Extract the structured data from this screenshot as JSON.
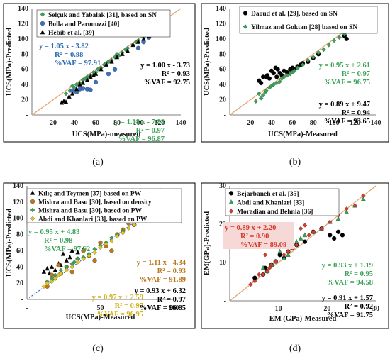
{
  "charts": [
    {
      "id": "a",
      "caption": "(a)",
      "xlabel": "UCS(MPa)-measured",
      "ylabel": "UCS(MPa)-Predicted",
      "xlim": [
        0,
        140
      ],
      "ylim": [
        0,
        140
      ],
      "xticks": [
        "-",
        "20",
        "40",
        "60",
        "80",
        "100",
        "120",
        "140"
      ],
      "yticks": [
        "-",
        "20",
        "40",
        "60",
        "80",
        "100",
        "120",
        "140"
      ],
      "legend": [
        "Selçuk and Yabalak [31], based on SN",
        "Bolla and Paronuzzi [40]",
        "Hebib et al. [39]"
      ],
      "annotations": [
        {
          "lines": [
            "y = 1.05 x -  3.82",
            "R² = 0.98",
            "%VAF = 97.91"
          ],
          "color": "#2e6db4"
        },
        {
          "lines": [
            "y = 1.00 x -  3.73",
            "R² = 0.93",
            "%VAF = 92.75"
          ],
          "color": "#000000"
        },
        {
          "lines": [
            "y = 1.08 x -  7.88",
            "R² = 0.97",
            "%VAF = 96.87"
          ],
          "color": "#3aa357"
        }
      ]
    },
    {
      "id": "b",
      "caption": "(b)",
      "xlabel": "UCS(MPa)-Measured",
      "ylabel": "UCS(MPa)-Predicted",
      "xlim": [
        0,
        140
      ],
      "ylim": [
        0,
        140
      ],
      "xticks": [
        "-",
        "20",
        "40",
        "60",
        "80",
        "100",
        "120",
        "140"
      ],
      "yticks": [
        "-",
        "20",
        "40",
        "60",
        "80",
        "100",
        "120",
        "140"
      ],
      "legend": [
        "Daoud et al. [29], based on SN",
        "Yilmaz and Goktan [28] based on SN"
      ],
      "annotations": [
        {
          "lines": [
            "y = 0.95 x +  2.61",
            "R² = 0.97",
            "%VAF = 96.75"
          ],
          "color": "#3aa357"
        },
        {
          "lines": [
            "y = 0.89 x +  9.47",
            "R² = 0.94",
            "%VAF = 93.65"
          ],
          "color": "#000000"
        }
      ]
    },
    {
      "id": "c",
      "caption": "(c)",
      "xlabel": "UCS(MPa)-Measured",
      "ylabel": "UCS(MPa)-Predicted",
      "xlim": [
        0,
        130
      ],
      "ylim": [
        0,
        140
      ],
      "xticks": [
        "-",
        "50",
        "100"
      ],
      "yticks": [
        "-",
        "20",
        "40",
        "60",
        "80",
        "100",
        "120",
        "140"
      ],
      "legend": [
        "Kılıç and Teymen [37] based on PW",
        "Mishra and Basu [30], based on density",
        "Mishra and Basu [30], based on PW",
        "Abdi and Khanlari [33], based on PW"
      ],
      "annotations": [
        {
          "lines": [
            "y = 0.95 x +  4.83",
            "R² = 0.98",
            "%VAF = 97.62"
          ],
          "color": "#3aa357"
        },
        {
          "lines": [
            "y = 1.11 x -  4.34",
            "R² = 0.93",
            "%VAF = 91.89"
          ],
          "color": "#b9781e"
        },
        {
          "lines": [
            "y = 0.97 x +  2.59",
            "R² = 0.97",
            "%VAF = 96.95"
          ],
          "color": "#d4b21a"
        },
        {
          "lines": [
            "y = 0.93 x +  6.32",
            "R² = 0.97",
            "%VAF = 96.85"
          ],
          "color": "#000000"
        }
      ]
    },
    {
      "id": "d",
      "caption": "(d)",
      "xlabel": "EM (GPa)-Measured",
      "ylabel": "EM(GPa)-Predicted",
      "xlim": [
        0,
        35
      ],
      "ylim": [
        0,
        35
      ],
      "xticks": [
        "-",
        "10",
        "20",
        "30"
      ],
      "yticks": [
        "-",
        "10",
        "20",
        "30"
      ],
      "legend": [
        "Bejarbaneh et al. [35]",
        "Abdi and Khanlari [33]",
        "Moradian and Behnia [36]"
      ],
      "annotations": [
        {
          "lines": [
            "y = 0.89 x +  2.20",
            "R² = 0.90",
            "%VAF = 89.09"
          ],
          "color": "#d33b2c"
        },
        {
          "lines": [
            "y = 0.93 x +  1.19",
            "R² = 0.95",
            "%VAF = 94.58"
          ],
          "color": "#3aa357"
        },
        {
          "lines": [
            "y = 0.91 x +  1.57",
            "R² = 0.92",
            "%VAF = 91.75"
          ],
          "color": "#000000"
        }
      ]
    }
  ],
  "chart_data": [
    {
      "type": "scatter",
      "xlim": [
        0,
        140
      ],
      "ylim": [
        0,
        140
      ],
      "reference_line": "y = x",
      "series": [
        {
          "name": "Selçuk and Yabalak [31], based on SN",
          "color": "#3aa357",
          "marker": "diamond",
          "x": [
            32,
            36,
            38,
            40,
            42,
            45,
            48,
            50,
            52,
            55,
            58,
            60,
            62,
            65,
            68,
            70,
            72,
            75,
            78,
            80,
            82,
            85,
            88,
            90,
            95,
            98,
            100,
            105,
            110,
            115,
            118
          ],
          "y": [
            28,
            32,
            38,
            36,
            40,
            42,
            46,
            48,
            50,
            52,
            56,
            56,
            60,
            62,
            66,
            68,
            70,
            72,
            76,
            80,
            78,
            82,
            86,
            88,
            92,
            96,
            98,
            102,
            108,
            112,
            116
          ]
        },
        {
          "name": "Bolla and Paronuzzi [40]",
          "color": "#3a6fc4",
          "marker": "circle",
          "x": [
            38,
            42,
            45,
            48,
            52,
            55,
            60,
            72,
            78,
            100,
            105,
            110
          ],
          "y": [
            32,
            30,
            34,
            35,
            34,
            33,
            43,
            54,
            60,
            88,
            96,
            102
          ]
        },
        {
          "name": "Hebib et al. [39]",
          "color": "#000000",
          "marker": "triangle",
          "x": [
            28,
            30,
            32,
            35,
            38,
            42,
            45,
            48,
            52,
            55,
            58,
            60,
            65,
            70,
            75,
            80,
            85,
            90,
            95,
            100,
            105,
            110,
            115,
            118
          ],
          "y": [
            16,
            18,
            17,
            24,
            28,
            34,
            40,
            42,
            46,
            50,
            52,
            54,
            60,
            66,
            70,
            76,
            80,
            84,
            92,
            96,
            100,
            104,
            112,
            116
          ]
        }
      ]
    },
    {
      "type": "scatter",
      "xlim": [
        0,
        140
      ],
      "ylim": [
        0,
        140
      ],
      "reference_line": "y = x",
      "series": [
        {
          "name": "Daoud et al. [29], based on SN",
          "color": "#000000",
          "marker": "circle",
          "x": [
            28,
            30,
            32,
            35,
            36,
            38,
            40,
            42,
            44,
            45,
            46,
            48,
            50,
            52,
            55,
            58,
            60,
            62,
            65,
            68,
            70,
            75,
            80,
            85,
            110,
            112
          ],
          "y": [
            45,
            42,
            50,
            50,
            52,
            48,
            58,
            55,
            62,
            50,
            60,
            55,
            52,
            58,
            56,
            60,
            62,
            60,
            64,
            66,
            68,
            70,
            75,
            80,
            104,
            100
          ]
        },
        {
          "name": "Yilmaz and Goktan [28] based on SN",
          "color": "#3aa357",
          "marker": "diamond",
          "x": [
            25,
            28,
            30,
            32,
            34,
            35,
            38,
            40,
            42,
            45,
            48,
            50,
            52,
            55,
            58,
            60,
            62,
            65,
            70,
            75,
            80,
            85,
            90,
            95,
            100,
            105,
            110,
            115,
            118,
            120
          ],
          "y": [
            18,
            28,
            22,
            26,
            30,
            32,
            36,
            38,
            40,
            42,
            44,
            48,
            50,
            52,
            54,
            56,
            58,
            62,
            66,
            72,
            76,
            82,
            86,
            92,
            98,
            102,
            106,
            112,
            116,
            118
          ]
        }
      ]
    },
    {
      "type": "scatter",
      "xlim": [
        0,
        130
      ],
      "ylim": [
        0,
        140
      ],
      "reference_line": "y = x",
      "series": [
        {
          "name": "Kılıç and Teymen [37] based on PW",
          "color": "#000000",
          "marker": "triangle",
          "x": [
            15,
            18,
            20,
            22,
            25,
            28,
            30,
            32,
            35,
            38,
            40,
            45,
            50
          ],
          "y": [
            34,
            38,
            32,
            40,
            36,
            44,
            42,
            56,
            48,
            52,
            60,
            58,
            62
          ]
        },
        {
          "name": "Mishra and Basu [30], based on density",
          "color": "#b9781e",
          "marker": "circle",
          "x": [
            18,
            22,
            25,
            28,
            30,
            35,
            40,
            45,
            50,
            55,
            60,
            65,
            70,
            75,
            80,
            85,
            90,
            95,
            100,
            105,
            110,
            115,
            118
          ],
          "y": [
            16,
            30,
            26,
            42,
            32,
            40,
            34,
            50,
            60,
            54,
            48,
            70,
            66,
            60,
            80,
            86,
            94,
            92,
            100,
            110,
            120,
            128,
            134
          ]
        },
        {
          "name": "Mishra and Basu [30], based on PW",
          "color": "#3aa357",
          "marker": "diamond",
          "x": [
            18,
            22,
            25,
            30,
            35,
            40,
            42,
            45,
            50,
            55,
            60,
            65,
            70,
            75,
            80,
            85,
            90,
            95,
            100,
            105,
            110,
            115
          ],
          "y": [
            22,
            26,
            30,
            36,
            40,
            44,
            46,
            50,
            52,
            56,
            62,
            66,
            70,
            76,
            80,
            84,
            88,
            94,
            98,
            104,
            108,
            112
          ]
        },
        {
          "name": "Abdi and Khanlari [33], based on PW",
          "color": "#e3c61e",
          "marker": "diamond",
          "x": [
            15,
            18,
            22,
            25,
            28,
            30,
            35,
            40,
            45,
            50,
            55,
            60,
            65,
            70,
            75,
            80,
            85,
            90,
            95,
            100,
            105,
            110,
            115
          ],
          "y": [
            16,
            20,
            22,
            26,
            30,
            32,
            36,
            40,
            46,
            50,
            54,
            58,
            64,
            68,
            72,
            78,
            82,
            88,
            92,
            96,
            102,
            108,
            112
          ]
        }
      ]
    },
    {
      "type": "scatter",
      "xlim": [
        0,
        35
      ],
      "ylim": [
        0,
        35
      ],
      "reference_line": "y = x",
      "series": [
        {
          "name": "Bejarbaneh et al. [35]",
          "color": "#000000",
          "marker": "circle",
          "x": [
            6,
            8,
            8.5,
            9,
            10,
            11,
            12,
            13,
            14,
            15,
            16,
            18,
            20,
            22,
            24,
            25,
            26,
            27
          ],
          "y": [
            7,
            8,
            10,
            9,
            11,
            12,
            14,
            13,
            15,
            16,
            17,
            18,
            21,
            22,
            20,
            19,
            21,
            20
          ]
        },
        {
          "name": "Abdi and Khanlari [33]",
          "color": "#3aa357",
          "marker": "triangle",
          "x": [
            8,
            9,
            10,
            11,
            12,
            13,
            14,
            15,
            16,
            17,
            18,
            20,
            22,
            24,
            26,
            28,
            30,
            32
          ],
          "y": [
            10,
            9,
            11,
            12,
            15,
            13,
            14,
            16,
            18,
            19,
            20,
            21,
            22,
            24,
            25,
            27,
            29,
            31
          ]
        },
        {
          "name": "Moradian and Behnia [36]",
          "color": "#d33b2c",
          "marker": "diamond",
          "x": [
            5,
            6,
            7,
            8,
            8.5,
            9,
            9.5,
            10,
            11,
            12,
            13,
            14,
            15,
            16,
            17,
            18,
            19,
            20,
            22,
            24,
            26,
            28,
            30,
            32
          ],
          "y": [
            5,
            6,
            8,
            8,
            14,
            9,
            10,
            11,
            12,
            18,
            14,
            15,
            16,
            17,
            22,
            23,
            20,
            21,
            22,
            24,
            26,
            28,
            29,
            32
          ]
        }
      ]
    }
  ]
}
